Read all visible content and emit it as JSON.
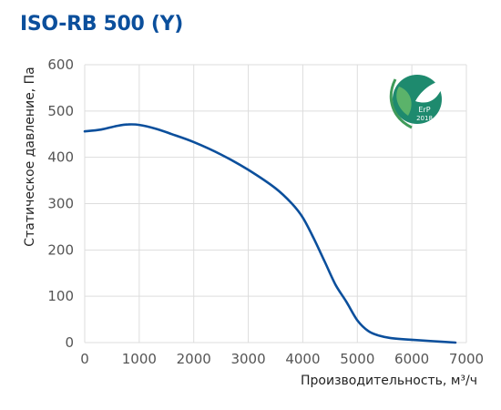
{
  "title": "ISO-RB 500 (Y)",
  "badge": {
    "label": "ErP",
    "year": "2018",
    "icon": "leaf-icon",
    "color": "#1e8a6e"
  },
  "colors": {
    "curve": "#0b4f9c",
    "grid": "#dddddd",
    "title": "#0b4f9c"
  },
  "chart_data": {
    "type": "line",
    "title": "ISO-RB 500 (Y)",
    "xlabel": "Производительность, м³/ч",
    "ylabel": "Статическое давление, Па",
    "xlim": [
      0,
      7000
    ],
    "ylim": [
      0,
      600
    ],
    "xticks": [
      0,
      1000,
      2000,
      3000,
      4000,
      5000,
      6000,
      7000
    ],
    "yticks": [
      0,
      100,
      200,
      300,
      400,
      500,
      600
    ],
    "grid": true,
    "series": [
      {
        "x": [
          0,
          300,
          600,
          800,
          1000,
          1300,
          1600,
          2000,
          2500,
          3000,
          3500,
          3800,
          4000,
          4200,
          4400,
          4600,
          4800,
          5000,
          5200,
          5400,
          5600,
          6000,
          6400,
          6800
        ],
        "y": [
          456,
          460,
          468,
          471,
          470,
          462,
          450,
          433,
          406,
          373,
          333,
          300,
          270,
          225,
          175,
          125,
          88,
          48,
          25,
          15,
          10,
          6,
          3,
          0
        ]
      }
    ]
  }
}
